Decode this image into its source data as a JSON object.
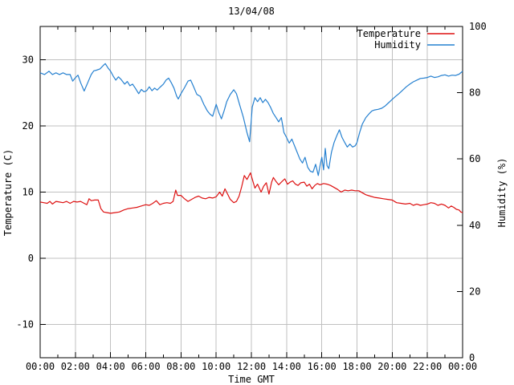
{
  "chart_data": {
    "type": "line",
    "title": "13/04/08",
    "xlabel": "Time GMT",
    "x_range_hours": [
      0,
      24
    ],
    "x_major_tick_hours": [
      0,
      2,
      4,
      6,
      8,
      10,
      12,
      14,
      16,
      18,
      20,
      22,
      24
    ],
    "x_major_tick_labels": [
      "00:00",
      "02:00",
      "04:00",
      "06:00",
      "08:00",
      "10:00",
      "12:00",
      "14:00",
      "16:00",
      "18:00",
      "20:00",
      "22:00",
      "00:00"
    ],
    "x_minor_tick_hours": [
      1,
      3,
      5,
      7,
      9,
      11,
      13,
      15,
      17,
      19,
      21,
      23
    ],
    "left_axis": {
      "label": "Temperature (C)",
      "min": -15,
      "max": 35,
      "ticks": [
        -10,
        0,
        10,
        20,
        30
      ]
    },
    "right_axis": {
      "label": "Humidity (%)",
      "min": 0,
      "max": 100,
      "ticks": [
        0,
        20,
        40,
        60,
        80,
        100
      ]
    },
    "grid": {
      "vertical_at_x_major": true,
      "horizontal_at_left_ticks": true,
      "color": "#c0c0c0"
    },
    "axis_color": "#000000",
    "legend": {
      "position": "top-right-inside",
      "entries": [
        "Temperature",
        "Humidity"
      ]
    },
    "series": [
      {
        "name": "Temperature",
        "axis": "left",
        "color": "#dd1111",
        "points": [
          [
            0.0,
            8.5
          ],
          [
            0.2,
            8.4
          ],
          [
            0.4,
            8.3
          ],
          [
            0.55,
            8.6
          ],
          [
            0.7,
            8.2
          ],
          [
            0.9,
            8.6
          ],
          [
            1.1,
            8.5
          ],
          [
            1.3,
            8.4
          ],
          [
            1.5,
            8.6
          ],
          [
            1.7,
            8.3
          ],
          [
            1.9,
            8.6
          ],
          [
            2.1,
            8.5
          ],
          [
            2.3,
            8.6
          ],
          [
            2.5,
            8.3
          ],
          [
            2.65,
            8.1
          ],
          [
            2.78,
            9.0
          ],
          [
            2.9,
            8.7
          ],
          [
            3.1,
            8.8
          ],
          [
            3.3,
            8.8
          ],
          [
            3.45,
            7.5
          ],
          [
            3.6,
            7.0
          ],
          [
            3.8,
            6.9
          ],
          [
            4.0,
            6.8
          ],
          [
            4.25,
            6.9
          ],
          [
            4.5,
            7.0
          ],
          [
            4.75,
            7.3
          ],
          [
            5.0,
            7.5
          ],
          [
            5.25,
            7.6
          ],
          [
            5.5,
            7.7
          ],
          [
            5.75,
            7.9
          ],
          [
            6.0,
            8.1
          ],
          [
            6.2,
            8.0
          ],
          [
            6.4,
            8.3
          ],
          [
            6.6,
            8.7
          ],
          [
            6.8,
            8.1
          ],
          [
            7.0,
            8.3
          ],
          [
            7.2,
            8.4
          ],
          [
            7.4,
            8.3
          ],
          [
            7.55,
            8.6
          ],
          [
            7.7,
            10.3
          ],
          [
            7.8,
            9.5
          ],
          [
            8.0,
            9.5
          ],
          [
            8.2,
            9.0
          ],
          [
            8.4,
            8.6
          ],
          [
            8.6,
            8.9
          ],
          [
            8.8,
            9.2
          ],
          [
            9.0,
            9.4
          ],
          [
            9.2,
            9.1
          ],
          [
            9.4,
            9.0
          ],
          [
            9.6,
            9.2
          ],
          [
            9.8,
            9.1
          ],
          [
            10.0,
            9.3
          ],
          [
            10.2,
            10.0
          ],
          [
            10.35,
            9.4
          ],
          [
            10.5,
            10.5
          ],
          [
            10.65,
            9.7
          ],
          [
            10.8,
            8.9
          ],
          [
            11.0,
            8.4
          ],
          [
            11.15,
            8.6
          ],
          [
            11.3,
            9.4
          ],
          [
            11.45,
            10.8
          ],
          [
            11.6,
            12.5
          ],
          [
            11.75,
            11.9
          ],
          [
            11.95,
            12.9
          ],
          [
            12.1,
            11.5
          ],
          [
            12.2,
            10.6
          ],
          [
            12.35,
            11.2
          ],
          [
            12.55,
            10.0
          ],
          [
            12.7,
            10.9
          ],
          [
            12.85,
            11.4
          ],
          [
            13.0,
            9.7
          ],
          [
            13.15,
            11.5
          ],
          [
            13.25,
            12.2
          ],
          [
            13.4,
            11.6
          ],
          [
            13.55,
            11.1
          ],
          [
            13.7,
            11.5
          ],
          [
            13.9,
            12.0
          ],
          [
            14.05,
            11.2
          ],
          [
            14.2,
            11.5
          ],
          [
            14.35,
            11.7
          ],
          [
            14.5,
            11.2
          ],
          [
            14.65,
            11.0
          ],
          [
            14.8,
            11.4
          ],
          [
            15.0,
            11.5
          ],
          [
            15.15,
            10.9
          ],
          [
            15.3,
            11.2
          ],
          [
            15.45,
            10.5
          ],
          [
            15.6,
            11.0
          ],
          [
            15.75,
            11.3
          ],
          [
            15.9,
            11.1
          ],
          [
            16.1,
            11.3
          ],
          [
            16.3,
            11.2
          ],
          [
            16.5,
            11.0
          ],
          [
            16.7,
            10.7
          ],
          [
            16.9,
            10.4
          ],
          [
            17.1,
            10.0
          ],
          [
            17.3,
            10.3
          ],
          [
            17.5,
            10.2
          ],
          [
            17.7,
            10.3
          ],
          [
            17.9,
            10.2
          ],
          [
            18.1,
            10.2
          ],
          [
            18.3,
            9.9
          ],
          [
            18.5,
            9.6
          ],
          [
            18.75,
            9.4
          ],
          [
            19.0,
            9.2
          ],
          [
            19.25,
            9.1
          ],
          [
            19.5,
            9.0
          ],
          [
            19.75,
            8.9
          ],
          [
            20.0,
            8.8
          ],
          [
            20.25,
            8.4
          ],
          [
            20.5,
            8.3
          ],
          [
            20.75,
            8.2
          ],
          [
            21.0,
            8.3
          ],
          [
            21.2,
            8.0
          ],
          [
            21.4,
            8.2
          ],
          [
            21.6,
            8.0
          ],
          [
            21.8,
            8.1
          ],
          [
            22.0,
            8.2
          ],
          [
            22.2,
            8.4
          ],
          [
            22.4,
            8.3
          ],
          [
            22.6,
            8.0
          ],
          [
            22.8,
            8.2
          ],
          [
            23.0,
            8.0
          ],
          [
            23.2,
            7.6
          ],
          [
            23.35,
            7.9
          ],
          [
            23.5,
            7.7
          ],
          [
            23.65,
            7.4
          ],
          [
            23.8,
            7.3
          ],
          [
            23.9,
            7.0
          ],
          [
            24.0,
            6.9
          ]
        ]
      },
      {
        "name": "Humidity",
        "axis": "right",
        "color": "#2580d0",
        "points": [
          [
            0.0,
            86
          ],
          [
            0.25,
            85.5
          ],
          [
            0.5,
            86.5
          ],
          [
            0.7,
            85.5
          ],
          [
            0.9,
            86
          ],
          [
            1.1,
            85.5
          ],
          [
            1.3,
            86
          ],
          [
            1.5,
            85.5
          ],
          [
            1.7,
            85.5
          ],
          [
            1.85,
            83.5
          ],
          [
            2.0,
            84.5
          ],
          [
            2.15,
            85.3
          ],
          [
            2.3,
            83
          ],
          [
            2.5,
            80.5
          ],
          [
            2.7,
            83
          ],
          [
            2.9,
            85.5
          ],
          [
            3.05,
            86.6
          ],
          [
            3.2,
            86.8
          ],
          [
            3.4,
            87.2
          ],
          [
            3.6,
            88.3
          ],
          [
            3.7,
            88.8
          ],
          [
            3.85,
            87.5
          ],
          [
            4.0,
            86.5
          ],
          [
            4.15,
            85
          ],
          [
            4.3,
            83.8
          ],
          [
            4.45,
            84.8
          ],
          [
            4.6,
            84
          ],
          [
            4.8,
            82.6
          ],
          [
            4.95,
            83.4
          ],
          [
            5.1,
            82.1
          ],
          [
            5.25,
            82.6
          ],
          [
            5.4,
            81.4
          ],
          [
            5.6,
            79.7
          ],
          [
            5.75,
            81
          ],
          [
            5.9,
            80.3
          ],
          [
            6.05,
            80.6
          ],
          [
            6.2,
            81.8
          ],
          [
            6.35,
            80.6
          ],
          [
            6.5,
            81.4
          ],
          [
            6.65,
            80.8
          ],
          [
            6.8,
            81.6
          ],
          [
            7.0,
            82.6
          ],
          [
            7.15,
            83.8
          ],
          [
            7.3,
            84.4
          ],
          [
            7.45,
            83
          ],
          [
            7.6,
            81.4
          ],
          [
            7.75,
            79
          ],
          [
            7.85,
            78.1
          ],
          [
            8.0,
            79.7
          ],
          [
            8.2,
            81.5
          ],
          [
            8.4,
            83.5
          ],
          [
            8.55,
            83.8
          ],
          [
            8.7,
            82
          ],
          [
            8.9,
            79.5
          ],
          [
            9.1,
            78.9
          ],
          [
            9.3,
            76.5
          ],
          [
            9.5,
            74.5
          ],
          [
            9.65,
            73.5
          ],
          [
            9.8,
            72.9
          ],
          [
            10.0,
            76.5
          ],
          [
            10.15,
            74
          ],
          [
            10.3,
            72.1
          ],
          [
            10.45,
            74.5
          ],
          [
            10.6,
            77.3
          ],
          [
            10.8,
            79.5
          ],
          [
            11.0,
            80.9
          ],
          [
            11.15,
            79.7
          ],
          [
            11.35,
            76
          ],
          [
            11.55,
            72.5
          ],
          [
            11.75,
            68
          ],
          [
            11.9,
            65.2
          ],
          [
            12.05,
            75.7
          ],
          [
            12.2,
            78.5
          ],
          [
            12.35,
            77.3
          ],
          [
            12.5,
            78.5
          ],
          [
            12.65,
            77
          ],
          [
            12.8,
            78
          ],
          [
            12.95,
            77
          ],
          [
            13.1,
            75.5
          ],
          [
            13.25,
            73.7
          ],
          [
            13.4,
            72.5
          ],
          [
            13.55,
            71.2
          ],
          [
            13.7,
            72.5
          ],
          [
            13.85,
            68
          ],
          [
            14.0,
            66.5
          ],
          [
            14.15,
            64.8
          ],
          [
            14.3,
            66
          ],
          [
            14.45,
            64
          ],
          [
            14.6,
            62
          ],
          [
            14.75,
            60
          ],
          [
            14.9,
            58.8
          ],
          [
            15.05,
            60.5
          ],
          [
            15.2,
            57.5
          ],
          [
            15.35,
            56.3
          ],
          [
            15.5,
            56
          ],
          [
            15.65,
            58.4
          ],
          [
            15.8,
            55
          ],
          [
            15.9,
            58
          ],
          [
            16.0,
            60.5
          ],
          [
            16.1,
            56.7
          ],
          [
            16.2,
            63.2
          ],
          [
            16.3,
            58
          ],
          [
            16.4,
            57.1
          ],
          [
            16.55,
            62
          ],
          [
            16.7,
            65
          ],
          [
            16.85,
            67
          ],
          [
            17.0,
            68.8
          ],
          [
            17.15,
            66.5
          ],
          [
            17.3,
            65
          ],
          [
            17.45,
            63.6
          ],
          [
            17.6,
            64.5
          ],
          [
            17.75,
            63.6
          ],
          [
            17.9,
            64
          ],
          [
            18.0,
            65
          ],
          [
            18.15,
            68
          ],
          [
            18.3,
            70.5
          ],
          [
            18.5,
            72.5
          ],
          [
            18.7,
            73.7
          ],
          [
            18.85,
            74.5
          ],
          [
            19.0,
            74.8
          ],
          [
            19.2,
            75
          ],
          [
            19.4,
            75.3
          ],
          [
            19.6,
            76
          ],
          [
            19.8,
            77
          ],
          [
            20.0,
            78
          ],
          [
            20.2,
            78.9
          ],
          [
            20.4,
            79.8
          ],
          [
            20.6,
            80.8
          ],
          [
            20.8,
            81.8
          ],
          [
            21.0,
            82.6
          ],
          [
            21.2,
            83.3
          ],
          [
            21.4,
            83.8
          ],
          [
            21.6,
            84.3
          ],
          [
            21.8,
            84.4
          ],
          [
            22.0,
            84.6
          ],
          [
            22.2,
            85
          ],
          [
            22.4,
            84.6
          ],
          [
            22.6,
            84.8
          ],
          [
            22.8,
            85.2
          ],
          [
            23.0,
            85.4
          ],
          [
            23.2,
            85
          ],
          [
            23.4,
            85.3
          ],
          [
            23.6,
            85.2
          ],
          [
            23.8,
            85.6
          ],
          [
            24.0,
            86.5
          ]
        ]
      }
    ]
  }
}
